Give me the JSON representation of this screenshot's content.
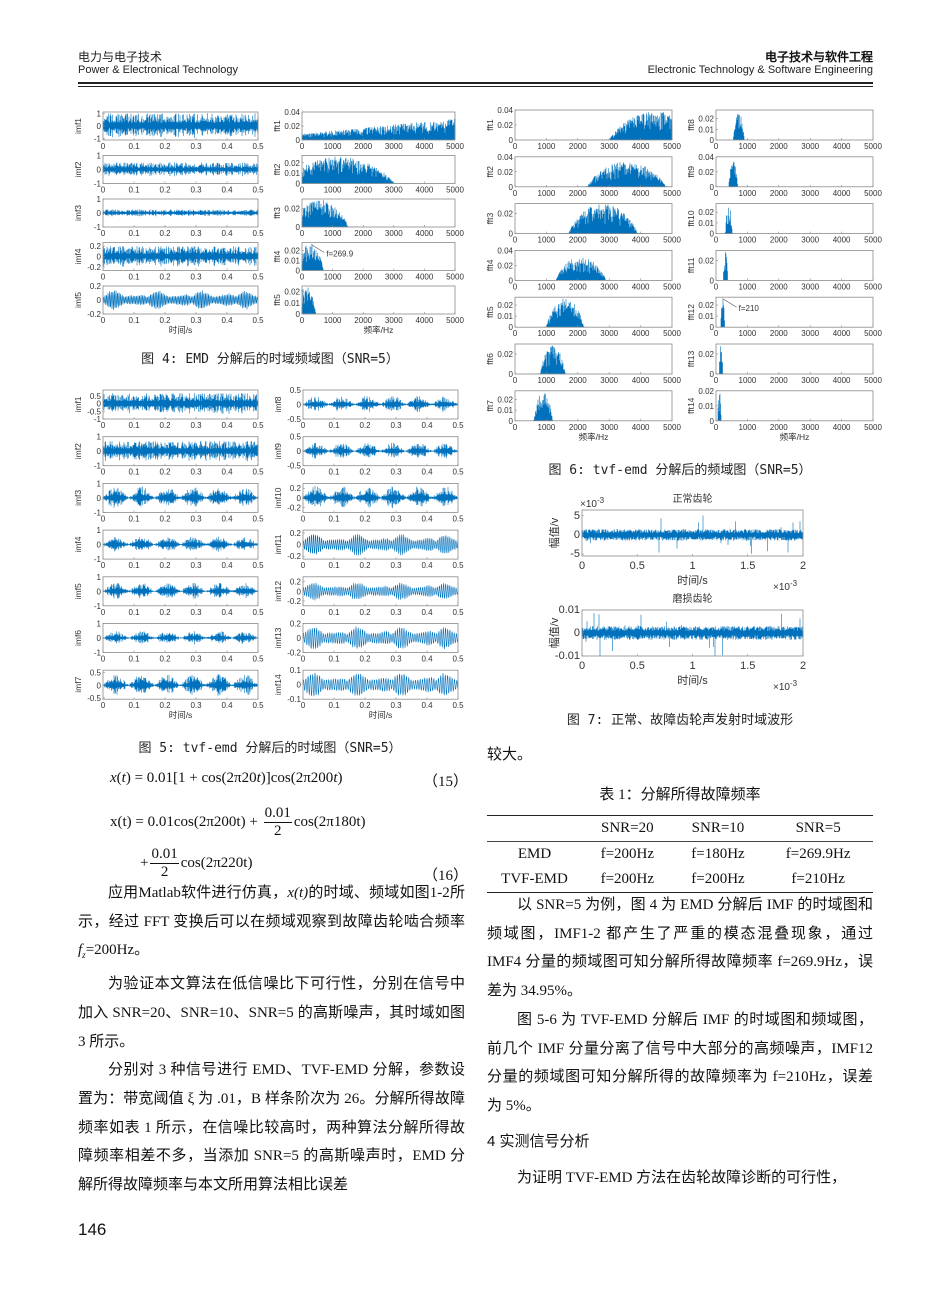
{
  "header": {
    "left_cn": "电力与电子技术",
    "left_en": "Power & Electronical Technology",
    "right_cn": "电子技术与软件工程",
    "right_en": "Electronic Technology & Software Engineering"
  },
  "colors": {
    "trace": "#0072BD",
    "axes": "#8a8a8a",
    "tick_text": "#333333"
  },
  "figures": {
    "fig4": {
      "caption": "图 4: EMD 分解后的时域频域图（SNR=5）",
      "xlabels": [
        "时间/s",
        "频率/Hz"
      ],
      "columns": [
        {
          "xticks": [
            0,
            0.1,
            0.2,
            0.3,
            0.4,
            0.5
          ],
          "xlim": [
            0,
            0.5
          ],
          "plots": [
            {
              "ylabel": "imf1",
              "yticks": [
                -1,
                0,
                1
              ],
              "ylim": [
                -1.1,
                1.1
              ],
              "kind": "time",
              "amp": 1.0,
              "style": "noise"
            },
            {
              "ylabel": "imf2",
              "yticks": [
                -1,
                0,
                1
              ],
              "ylim": [
                -1,
                1
              ],
              "kind": "time",
              "amp": 0.5,
              "style": "noise"
            },
            {
              "ylabel": "imf3",
              "yticks": [
                -1,
                0,
                1
              ],
              "ylim": [
                -1,
                1
              ],
              "kind": "time",
              "amp": 0.25,
              "style": "noise"
            },
            {
              "ylabel": "imf4",
              "yticks": [
                -0.2,
                0,
                0.2
              ],
              "ylim": [
                -0.27,
                0.27
              ],
              "kind": "time",
              "amp": 0.2,
              "style": "noise"
            },
            {
              "ylabel": "imf5",
              "yticks": [
                -0.2,
                0,
                0.2
              ],
              "ylim": [
                -0.2,
                0.2
              ],
              "kind": "time",
              "amp": 0.15,
              "style": "osc"
            }
          ]
        },
        {
          "xticks": [
            0,
            1000,
            2000,
            3000,
            4000,
            5000
          ],
          "xlim": [
            0,
            5000
          ],
          "plots": [
            {
              "ylabel": "fft1",
              "yticks": [
                0,
                0.02,
                0.04
              ],
              "ylim": [
                0,
                0.04
              ],
              "kind": "fft",
              "band": [
                0,
                5000
              ],
              "peak": 0.036,
              "shape": "rising"
            },
            {
              "ylabel": "fft2",
              "yticks": [
                0,
                0.01,
                0.02
              ],
              "ylim": [
                0,
                0.027
              ],
              "kind": "fft",
              "band": [
                -600,
                3000
              ],
              "peak": 0.026
            },
            {
              "ylabel": "fft3",
              "yticks": [
                0,
                0.02
              ],
              "ylim": [
                0,
                0.03
              ],
              "kind": "fft",
              "band": [
                -300,
                1500
              ],
              "peak": 0.029
            },
            {
              "ylabel": "fft4",
              "yticks": [
                0,
                0.01,
                0.02
              ],
              "ylim": [
                0,
                0.028
              ],
              "kind": "fft",
              "band": [
                -150,
                700
              ],
              "peak": 0.028,
              "annotation": "f=269.9",
              "annotation_x": 269.9
            },
            {
              "ylabel": "fft5",
              "yticks": [
                0,
                0.01,
                0.02
              ],
              "ylim": [
                0,
                0.025
              ],
              "kind": "fft",
              "band": [
                -200,
                450
              ],
              "peak": 0.025
            }
          ]
        }
      ]
    },
    "fig5": {
      "caption": "图 5: tvf-emd 分解后的时域图（SNR=5）",
      "xlabels": [
        "时间/s",
        "时间/s"
      ],
      "columns": [
        {
          "xticks": [
            0,
            0.1,
            0.2,
            0.3,
            0.4,
            0.5
          ],
          "xlim": [
            0,
            0.5
          ],
          "plots": [
            {
              "ylabel": "imf1",
              "yticks": [
                -1,
                -0.5,
                0,
                0.5
              ],
              "ylim": [
                -1,
                0.9
              ],
              "kind": "time",
              "amp": 0.7,
              "style": "noise"
            },
            {
              "ylabel": "imf2",
              "yticks": [
                -1,
                0,
                1
              ],
              "ylim": [
                -1,
                1
              ],
              "kind": "time",
              "amp": 0.7,
              "style": "noise"
            },
            {
              "ylabel": "imf3",
              "yticks": [
                -1,
                0,
                1
              ],
              "ylim": [
                -1,
                1
              ],
              "kind": "time",
              "amp": 0.8,
              "style": "burst"
            },
            {
              "ylabel": "imf4",
              "yticks": [
                -1,
                0,
                1
              ],
              "ylim": [
                -1,
                1
              ],
              "kind": "time",
              "amp": 0.6,
              "style": "burst"
            },
            {
              "ylabel": "imf5",
              "yticks": [
                -1,
                0,
                1
              ],
              "ylim": [
                -1,
                1
              ],
              "kind": "time",
              "amp": 0.6,
              "style": "burst"
            },
            {
              "ylabel": "imf6",
              "yticks": [
                -1,
                0,
                1
              ],
              "ylim": [
                -1,
                1
              ],
              "kind": "time",
              "amp": 0.5,
              "style": "burst"
            },
            {
              "ylabel": "imf7",
              "yticks": [
                -0.5,
                0,
                0.5
              ],
              "ylim": [
                -0.55,
                0.6
              ],
              "kind": "time",
              "amp": 0.45,
              "style": "burst"
            }
          ]
        },
        {
          "xticks": [
            0,
            0.1,
            0.2,
            0.3,
            0.4,
            0.5
          ],
          "xlim": [
            0,
            0.5
          ],
          "plots": [
            {
              "ylabel": "imf8",
              "yticks": [
                -0.5,
                0,
                0.5
              ],
              "ylim": [
                -0.5,
                0.5
              ],
              "kind": "time",
              "amp": 0.3,
              "style": "burst"
            },
            {
              "ylabel": "imf9",
              "yticks": [
                -0.5,
                0,
                0.5
              ],
              "ylim": [
                -0.5,
                0.5
              ],
              "kind": "time",
              "amp": 0.3,
              "style": "burst"
            },
            {
              "ylabel": "imf10",
              "yticks": [
                -0.2,
                0,
                0.2
              ],
              "ylim": [
                -0.3,
                0.3
              ],
              "kind": "time",
              "amp": 0.25,
              "style": "burst"
            },
            {
              "ylabel": "imf11",
              "yticks": [
                -0.2,
                0,
                0.2
              ],
              "ylim": [
                -0.25,
                0.25
              ],
              "kind": "time",
              "amp": 0.2,
              "style": "osc"
            },
            {
              "ylabel": "imf12",
              "yticks": [
                -0.2,
                0,
                0.2
              ],
              "ylim": [
                -0.3,
                0.3
              ],
              "kind": "time",
              "amp": 0.2,
              "style": "osc"
            },
            {
              "ylabel": "imf13",
              "yticks": [
                -0.2,
                0,
                0.2
              ],
              "ylim": [
                -0.2,
                0.2
              ],
              "kind": "time",
              "amp": 0.17,
              "style": "osc"
            },
            {
              "ylabel": "imf14",
              "yticks": [
                -0.1,
                0,
                0.1
              ],
              "ylim": [
                -0.1,
                0.1
              ],
              "kind": "time",
              "amp": 0.09,
              "style": "osc"
            }
          ]
        }
      ]
    },
    "fig6": {
      "caption": "图 6: tvf-emd 分解后的频域图（SNR=5）",
      "xlabels": [
        "频率/Hz",
        "频率/Hz"
      ],
      "columns": [
        {
          "xticks": [
            0,
            1000,
            2000,
            3000,
            4000,
            5000
          ],
          "xlim": [
            0,
            5000
          ],
          "plots": [
            {
              "ylabel": "fft1",
              "yticks": [
                0,
                0.02,
                0.04
              ],
              "ylim": [
                0,
                0.04
              ],
              "kind": "fft",
              "band": [
                3000,
                6000
              ],
              "peak": 0.038
            },
            {
              "ylabel": "fft2",
              "yticks": [
                0,
                0.02,
                0.04
              ],
              "ylim": [
                0,
                0.04
              ],
              "kind": "fft",
              "band": [
                2300,
                4800
              ],
              "peak": 0.034
            },
            {
              "ylabel": "fft3",
              "yticks": [
                0,
                0.02
              ],
              "ylim": [
                0,
                0.03
              ],
              "kind": "fft",
              "band": [
                1700,
                3900
              ],
              "peak": 0.03
            },
            {
              "ylabel": "fft4",
              "yticks": [
                0,
                0.02,
                0.04
              ],
              "ylim": [
                0,
                0.04
              ],
              "kind": "fft",
              "band": [
                1300,
                2900
              ],
              "peak": 0.032
            },
            {
              "ylabel": "fft5",
              "yticks": [
                0,
                0.01,
                0.02
              ],
              "ylim": [
                0,
                0.027
              ],
              "kind": "fft",
              "band": [
                1000,
                2200
              ],
              "peak": 0.026
            },
            {
              "ylabel": "fft6",
              "yticks": [
                0,
                0.02
              ],
              "ylim": [
                0,
                0.03
              ],
              "kind": "fft",
              "band": [
                800,
                1600
              ],
              "peak": 0.029
            },
            {
              "ylabel": "fft7",
              "yticks": [
                0,
                0.01,
                0.02
              ],
              "ylim": [
                0,
                0.028
              ],
              "kind": "fft",
              "band": [
                600,
                1200
              ],
              "peak": 0.027
            }
          ]
        },
        {
          "xticks": [
            0,
            1000,
            2000,
            3000,
            4000,
            5000
          ],
          "xlim": [
            0,
            5000
          ],
          "plots": [
            {
              "ylabel": "fft8",
              "yticks": [
                0,
                0.01,
                0.02
              ],
              "ylim": [
                0,
                0.028
              ],
              "kind": "fft",
              "band": [
                550,
                900
              ],
              "peak": 0.028
            },
            {
              "ylabel": "fft9",
              "yticks": [
                0,
                0.02,
                0.04
              ],
              "ylim": [
                0,
                0.04
              ],
              "kind": "fft",
              "band": [
                400,
                700
              ],
              "peak": 0.034
            },
            {
              "ylabel": "fft10",
              "yticks": [
                0,
                0.01,
                0.02
              ],
              "ylim": [
                0,
                0.028
              ],
              "kind": "fft",
              "band": [
                300,
                520
              ],
              "peak": 0.028
            },
            {
              "ylabel": "fft11",
              "yticks": [
                0,
                0.02
              ],
              "ylim": [
                0,
                0.03
              ],
              "kind": "fft",
              "band": [
                230,
                380
              ],
              "peak": 0.029
            },
            {
              "ylabel": "fft12",
              "yticks": [
                0,
                0.01,
                0.02
              ],
              "ylim": [
                0,
                0.027
              ],
              "kind": "fft",
              "band": [
                150,
                280
              ],
              "peak": 0.027,
              "annotation": "f=210",
              "annotation_x": 210
            },
            {
              "ylabel": "fft13",
              "yticks": [
                0,
                0.02
              ],
              "ylim": [
                0,
                0.03
              ],
              "kind": "fft",
              "band": [
                100,
                220
              ],
              "peak": 0.03
            },
            {
              "ylabel": "fft14",
              "yticks": [
                0,
                0.01,
                0.02
              ],
              "ylim": [
                0,
                0.02
              ],
              "kind": "fft",
              "band": [
                50,
                170
              ],
              "peak": 0.02
            }
          ]
        }
      ]
    },
    "fig7": {
      "caption": "图 7: 正常、故障齿轮声发射时域波形",
      "plots": [
        {
          "title": "正常齿轮",
          "ylabel": "幅值/v",
          "xlabel": "时间/s",
          "yticks": [
            -5,
            0,
            5
          ],
          "ylim": [
            -5.5,
            6.5
          ],
          "y_exponent": "-3",
          "xticks": [
            0,
            0.5,
            1,
            1.5,
            2
          ],
          "xlim": [
            0,
            2
          ],
          "x_exponent": "-3",
          "kind": "time",
          "amp": 1.5,
          "style": "spiky"
        },
        {
          "title": "磨损齿轮",
          "ylabel": "幅值/v",
          "xlabel": "时间/s",
          "yticks": [
            -0.01,
            0,
            0.01
          ],
          "ylim": [
            -0.01,
            0.01
          ],
          "xticks": [
            0,
            0.5,
            1,
            1.5,
            2
          ],
          "xlim": [
            0,
            2
          ],
          "x_exponent": "-3",
          "kind": "time",
          "amp": 0.003,
          "style": "spiky"
        }
      ]
    }
  },
  "equations": {
    "eq15": {
      "text_a": "x",
      "text_b": "(",
      "text_c": "t",
      "text_d": ") = 0.01[1 + cos(2π20",
      "text_e": "t",
      "text_f": ")]cos(2π200",
      "text_g": "t",
      "text_h": ")",
      "number": "（15）"
    },
    "eq16": {
      "line1_pre": "x(t) = 0.01cos(2π200t) +",
      "line1_num": "0.01",
      "line1_den": "2",
      "line1_post": "cos(2π180t)",
      "line2_pre": "+",
      "line2_num": "0.01",
      "line2_den": "2",
      "line2_post": "cos(2π220t)",
      "number": "（16）"
    }
  },
  "left_text": {
    "p1_a": "应用Matlab软件进行仿真，",
    "p1_var": "x(t)",
    "p1_b": "的时域、频域如图1-2所示，经过 FFT 变换后可以在频域观察到故障齿轮啮合频率 ",
    "p1_f": "f",
    "p1_sub": "z",
    "p1_c": "=200Hz。",
    "p2": "为验证本文算法在低信噪比下可行性，分别在信号中加入 SNR=20、SNR=10、SNR=5 的高斯噪声，其时域如图 3 所示。",
    "p3": "分别对 3 种信号进行 EMD、TVF-EMD 分解，参数设置为：带宽阈值 ξ 为 .01，B 样条阶次为 26。分解所得故障频率如表 1 所示，在信噪比较高时，两种算法分解所得故障频率相差不多，当添加 SNR=5 的高斯噪声时，EMD 分解所得故障频率与本文所用算法相比误差"
  },
  "right_text": {
    "cont": "较大。",
    "table": {
      "caption": "表 1：分解所得故障频率",
      "headers": [
        "",
        "SNR=20",
        "SNR=10",
        "SNR=5"
      ],
      "rows": [
        [
          "EMD",
          "f=200Hz",
          "f=180Hz",
          "f=269.9Hz"
        ],
        [
          "TVF-EMD",
          "f=200Hz",
          "f=200Hz",
          "f=210Hz"
        ]
      ]
    },
    "p1": "以 SNR=5 为例，图 4 为 EMD 分解后 IMF 的时域图和频域图，IMF1-2 都产生了严重的模态混叠现象，通过 IMF4 分量的频域图可知分解所得故障频率 f=269.9Hz，误差为 34.95%。",
    "p2": "图 5-6 为 TVF-EMD 分解后 IMF 的时域图和频域图，前几个 IMF 分量分离了信号中大部分的高频噪声，IMF12 分量的频域图可知分解所得的故障频率为 f=210Hz，误差为 5%。",
    "section": "4  实测信号分析",
    "p3": "为证明 TVF-EMD 方法在齿轮故障诊断的可行性，"
  },
  "page_number": "146"
}
